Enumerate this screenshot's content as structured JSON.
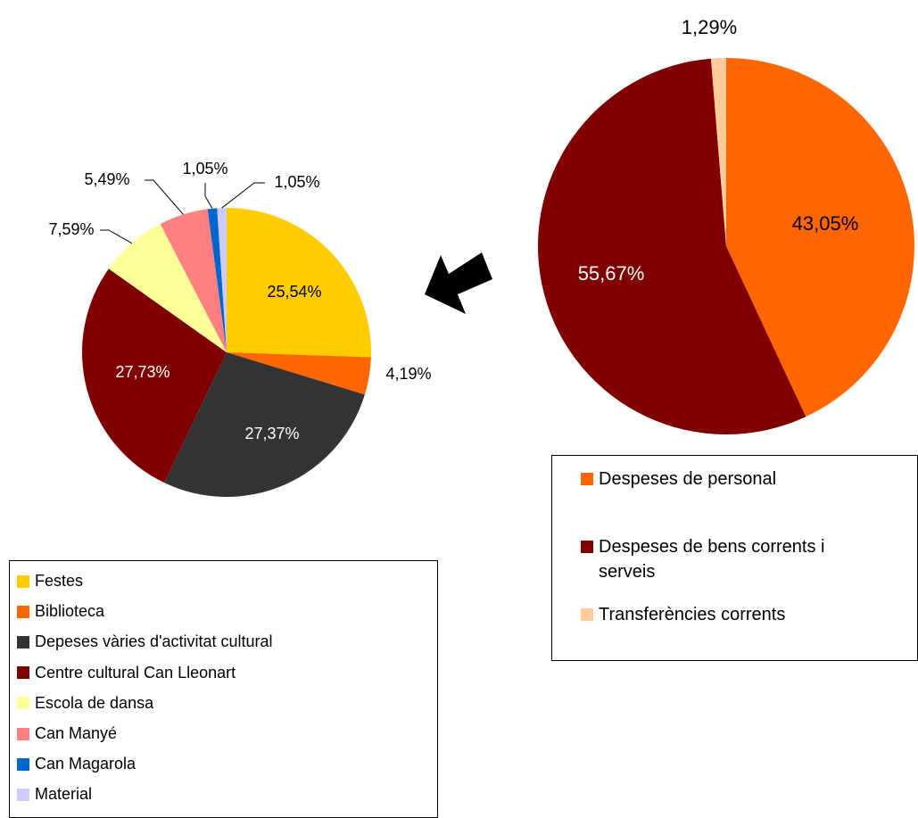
{
  "chart_data": [
    {
      "type": "pie",
      "categories": [
        "Festes",
        "Biblioteca",
        "Depeses vàries d'activitat cultural",
        "Centre cultural Can Lleonart",
        "Escola de dansa",
        "Can Manyé",
        "Can Magarola",
        "Material"
      ],
      "values": [
        25.54,
        4.19,
        27.37,
        27.73,
        7.59,
        5.49,
        1.05,
        1.05
      ],
      "value_labels": [
        "25,54%",
        "4,19%",
        "27,37%",
        "27,73%",
        "7,59%",
        "5,49%",
        "1,05%",
        "1,05%"
      ],
      "colors": [
        "#ffcc00",
        "#ff6600",
        "#333333",
        "#800000",
        "#ffff99",
        "#ff8080",
        "#0066cc",
        "#ccccff"
      ]
    },
    {
      "type": "pie",
      "categories": [
        "Despeses de personal",
        "Despeses de bens corrents i serveis",
        "Transferències corrents"
      ],
      "values": [
        43.05,
        55.67,
        1.29
      ],
      "value_labels": [
        "43,05%",
        "55,67%",
        "1,29%"
      ],
      "colors": [
        "#ff6600",
        "#800000",
        "#ffcc99"
      ]
    }
  ]
}
